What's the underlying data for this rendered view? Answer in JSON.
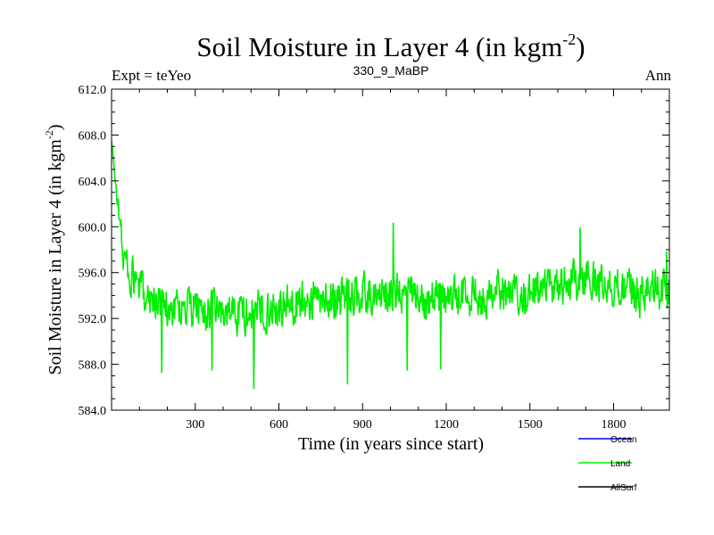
{
  "chart_data": {
    "type": "line",
    "title_main": "Soil Moisture in Layer 4 (in kgm",
    "title_sup": "-2",
    "title_close": ")",
    "subtitle_left": "Expt = teYeo",
    "subtitle_center": "330_9_MaBP",
    "subtitle_right": "Ann",
    "xlabel": "Time (in years since start)",
    "ylabel_main": "Soil Moisture in Layer 4 (in kgm",
    "ylabel_sup": "-2",
    "ylabel_close": ")",
    "xlim": [
      0,
      2000
    ],
    "ylim": [
      584.0,
      612.0
    ],
    "x_ticks": [
      300,
      600,
      900,
      1200,
      1500,
      1800
    ],
    "x_tick_labels": [
      "300",
      "600",
      "900",
      "1200",
      "1500",
      "1800"
    ],
    "y_ticks": [
      584.0,
      588.0,
      592.0,
      596.0,
      600.0,
      604.0,
      608.0,
      612.0
    ],
    "y_tick_labels": [
      "584.0",
      "588.0",
      "592.0",
      "596.0",
      "600.0",
      "604.0",
      "608.0",
      "612.0"
    ],
    "legend": [
      {
        "name": "Ocean",
        "color": "#0000ff"
      },
      {
        "name": "Land",
        "color": "#00ee00"
      },
      {
        "name": "AllSurf",
        "color": "#000000"
      }
    ],
    "series": [
      {
        "name": "Land",
        "color": "#00ee00",
        "note": "annual values, noisy; key anchors read from plot",
        "anchors": [
          [
            0,
            607.5
          ],
          [
            10,
            605.0
          ],
          [
            25,
            601.5
          ],
          [
            40,
            598.0
          ],
          [
            60,
            596.0
          ],
          [
            100,
            594.5
          ],
          [
            200,
            593.0
          ],
          [
            300,
            592.8
          ],
          [
            400,
            592.5
          ],
          [
            500,
            592.5
          ],
          [
            600,
            593.0
          ],
          [
            700,
            593.5
          ],
          [
            800,
            593.8
          ],
          [
            900,
            594.0
          ],
          [
            1000,
            594.2
          ],
          [
            1100,
            594.0
          ],
          [
            1200,
            593.8
          ],
          [
            1300,
            594.0
          ],
          [
            1400,
            594.2
          ],
          [
            1500,
            594.0
          ],
          [
            1600,
            594.8
          ],
          [
            1700,
            595.5
          ],
          [
            1800,
            594.8
          ],
          [
            1900,
            594.0
          ],
          [
            2000,
            594.5
          ]
        ],
        "noise_amplitude": 1.6,
        "extremes": [
          [
            180,
            587.3
          ],
          [
            360,
            587.5
          ],
          [
            510,
            585.9
          ],
          [
            845,
            586.3
          ],
          [
            1010,
            600.3
          ],
          [
            1060,
            587.5
          ],
          [
            1180,
            587.6
          ],
          [
            1680,
            599.9
          ],
          [
            1990,
            597.8
          ]
        ]
      }
    ]
  }
}
